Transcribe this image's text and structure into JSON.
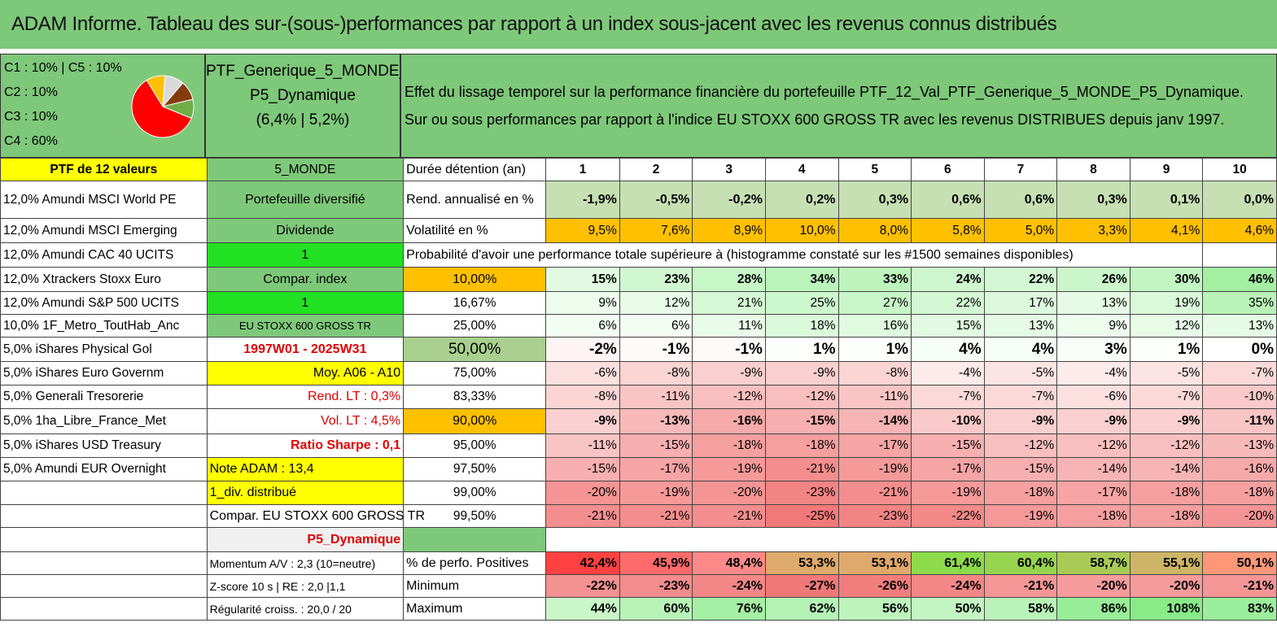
{
  "title": "ADAM Informe. Tableau des sur-(sous-)performances par rapport à un index sous-jacent avec les revenus connus distribués",
  "allocation": {
    "lines": [
      "C1 : 10% | C5 : 10%",
      "C2 : 10%",
      "C3 : 10%",
      "C4 : 60%"
    ],
    "slices": [
      {
        "label": "C1",
        "value": 10,
        "color": "#ffc000"
      },
      {
        "label": "C5",
        "value": 10,
        "color": "#d9d9d9"
      },
      {
        "label": "C2",
        "value": 10,
        "color": "#843c0c"
      },
      {
        "label": "C3",
        "value": 10,
        "color": "#70ad47"
      },
      {
        "label": "C4",
        "value": 60,
        "color": "#ff0000"
      }
    ]
  },
  "portfolio": {
    "name_line1": "PTF_Generique_5_MONDE_",
    "name_line2": "P5_Dynamique",
    "name_line3": "(6,4% | 5,2%)"
  },
  "description": {
    "line1": "Effet du lissage temporel sur la performance financière du portefeuille PTF_12_Val_PTF_Generique_5_MONDE_P5_Dynamique.",
    "line2": "Sur ou sous performances par rapport à l'indice EU STOXX 600 GROSS TR avec les revenus DISTRIBUES depuis janv 1997."
  },
  "header_row": {
    "ptf_count": "PTF de 12 valeurs",
    "zone": "5_MONDE",
    "duration_label": "Durée détention (an)",
    "years": [
      "1",
      "2",
      "3",
      "4",
      "5",
      "6",
      "7",
      "8",
      "9",
      "10"
    ]
  },
  "holdings": [
    "12,0% Amundi MSCI World PE",
    "12,0% Amundi MSCI Emerging",
    "12,0% Amundi CAC 40 UCITS",
    "12,0% Xtrackers Stoxx Euro",
    "12,0% Amundi S&P 500 UCITS",
    "10,0% 1F_Metro_ToutHab_Anc",
    "5,0% iShares Physical Gol",
    "5,0% iShares Euro Governm",
    "5,0% Generali Tresorerie",
    "5,0% 1ha_Libre_France_Met",
    "5,0% iShares USD Treasury",
    "5,0% Amundi EUR Overnight"
  ],
  "info_col": [
    "Portefeuille diversifié",
    "Dividende",
    "1",
    "Compar. index",
    "1",
    "EU STOXX 600 GROSS TR",
    "1997W01 - 2025W31",
    "Moy. A06 - A10",
    "Rend. LT : 0,3%",
    "Vol. LT : 4,5%",
    "Ratio Sharpe : 0,1",
    "Note ADAM : 13,4",
    "1_div. distribué",
    "Compar. EU STOXX 600 GROSS TR",
    "P5_Dynamique",
    "Momentum A/V : 2,3 (10=neutre)",
    "Z-score 10 s | RE : 2,0 |1,1",
    "Régularité croiss. : 20,0 / 20"
  ],
  "rend": {
    "label": "Rend. annualisé en %",
    "values": [
      "-1,9%",
      "-0,5%",
      "-0,2%",
      "0,2%",
      "0,3%",
      "0,6%",
      "0,6%",
      "0,3%",
      "0,1%",
      "0,0%"
    ]
  },
  "vol": {
    "label": "Volatilité en %",
    "values": [
      "9,5%",
      "7,6%",
      "8,9%",
      "10,0%",
      "8,0%",
      "5,8%",
      "5,0%",
      "3,3%",
      "4,1%",
      "4,6%"
    ]
  },
  "prob_caption": "Probabilité d'avoir une performance totale supérieure à (histogramme constaté sur les #1500 semaines disponibles)",
  "quantiles": [
    {
      "q": "10,00%",
      "v": [
        "15%",
        "23%",
        "28%",
        "34%",
        "33%",
        "24%",
        "22%",
        "26%",
        "30%",
        "46%"
      ]
    },
    {
      "q": "16,67%",
      "v": [
        "9%",
        "12%",
        "21%",
        "25%",
        "27%",
        "22%",
        "17%",
        "13%",
        "19%",
        "35%"
      ]
    },
    {
      "q": "25,00%",
      "v": [
        "6%",
        "6%",
        "11%",
        "18%",
        "16%",
        "15%",
        "13%",
        "9%",
        "12%",
        "13%"
      ]
    },
    {
      "q": "50,00%",
      "v": [
        "-2%",
        "-1%",
        "-1%",
        "1%",
        "1%",
        "4%",
        "4%",
        "3%",
        "1%",
        "0%"
      ]
    },
    {
      "q": "75,00%",
      "v": [
        "-6%",
        "-8%",
        "-9%",
        "-9%",
        "-8%",
        "-4%",
        "-5%",
        "-4%",
        "-5%",
        "-7%"
      ]
    },
    {
      "q": "83,33%",
      "v": [
        "-8%",
        "-11%",
        "-12%",
        "-12%",
        "-11%",
        "-7%",
        "-7%",
        "-6%",
        "-7%",
        "-10%"
      ]
    },
    {
      "q": "90,00%",
      "v": [
        "-9%",
        "-13%",
        "-16%",
        "-15%",
        "-14%",
        "-10%",
        "-9%",
        "-9%",
        "-9%",
        "-11%"
      ]
    },
    {
      "q": "95,00%",
      "v": [
        "-11%",
        "-15%",
        "-18%",
        "-18%",
        "-17%",
        "-15%",
        "-12%",
        "-12%",
        "-12%",
        "-13%"
      ]
    },
    {
      "q": "97,50%",
      "v": [
        "-15%",
        "-17%",
        "-19%",
        "-21%",
        "-19%",
        "-17%",
        "-15%",
        "-14%",
        "-14%",
        "-16%"
      ]
    },
    {
      "q": "99,00%",
      "v": [
        "-20%",
        "-19%",
        "-20%",
        "-23%",
        "-21%",
        "-19%",
        "-18%",
        "-17%",
        "-18%",
        "-18%"
      ]
    },
    {
      "q": "99,50%",
      "v": [
        "-21%",
        "-21%",
        "-21%",
        "-25%",
        "-23%",
        "-22%",
        "-19%",
        "-18%",
        "-18%",
        "-20%"
      ]
    }
  ],
  "stats": [
    {
      "label": "% de perfo. Positives",
      "v": [
        "42,4%",
        "45,9%",
        "48,4%",
        "53,3%",
        "53,1%",
        "61,4%",
        "60,4%",
        "58,7%",
        "55,1%",
        "50,1%"
      ]
    },
    {
      "label": "Minimum",
      "v": [
        "-22%",
        "-23%",
        "-24%",
        "-27%",
        "-26%",
        "-24%",
        "-21%",
        "-20%",
        "-20%",
        "-21%"
      ]
    },
    {
      "label": "Maximum",
      "v": [
        "44%",
        "60%",
        "76%",
        "62%",
        "56%",
        "50%",
        "58%",
        "86%",
        "108%",
        "83%"
      ]
    }
  ]
}
